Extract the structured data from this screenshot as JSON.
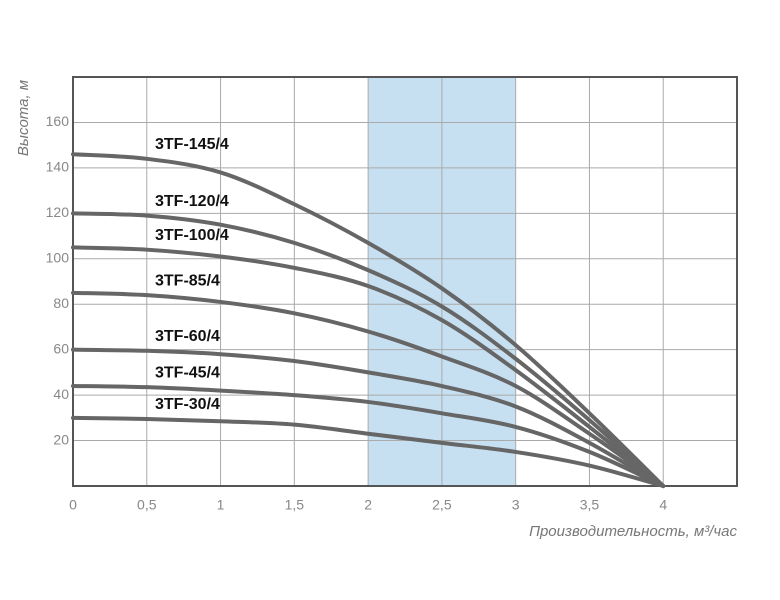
{
  "chart_data": {
    "type": "line",
    "y_label": "Высота, м",
    "x_label": "Производительность, м³/час",
    "x": [
      0,
      0.5,
      1,
      1.5,
      2,
      2.5,
      3,
      3.5,
      4
    ],
    "series": [
      {
        "name": "3TF-145/4",
        "color": "#666666",
        "values": [
          146,
          144,
          138,
          124,
          107,
          87,
          62,
          32,
          0
        ]
      },
      {
        "name": "3TF-120/4",
        "color": "#666666",
        "values": [
          120,
          119,
          115,
          107,
          95,
          79,
          56,
          29,
          0
        ]
      },
      {
        "name": "3TF-100/4",
        "color": "#666666",
        "values": [
          105,
          104,
          101,
          96,
          88,
          73,
          51,
          26,
          0
        ]
      },
      {
        "name": "3TF-85/4",
        "color": "#666666",
        "values": [
          85,
          84,
          81,
          76,
          68,
          57,
          44,
          23,
          0
        ]
      },
      {
        "name": "3TF-60/4",
        "color": "#666666",
        "values": [
          60,
          59.5,
          58,
          55,
          50,
          44,
          35,
          19,
          0
        ]
      },
      {
        "name": "3TF-45/4",
        "color": "#666666",
        "values": [
          44,
          43.5,
          42,
          40,
          37,
          32,
          26,
          15,
          0
        ]
      },
      {
        "name": "3TF-30/4",
        "color": "#666666",
        "values": [
          30,
          29.5,
          28.5,
          27,
          23,
          19,
          15,
          9,
          0
        ]
      }
    ],
    "highlight_range": [
      2,
      3
    ],
    "highlight_color": "#c6e0f2",
    "xlim": [
      0,
      4.5
    ],
    "ylim": [
      0,
      180
    ],
    "xticks": [
      0,
      {
        "value": 0.5,
        "label": "0,5"
      },
      1,
      {
        "value": 1.5,
        "label": "1,5"
      },
      2,
      {
        "value": 2.5,
        "label": "2,5"
      },
      3,
      {
        "value": 3.5,
        "label": "3,5"
      },
      4
    ],
    "yticks": [
      20,
      40,
      60,
      80,
      100,
      120,
      140,
      160
    ],
    "grid": true
  }
}
